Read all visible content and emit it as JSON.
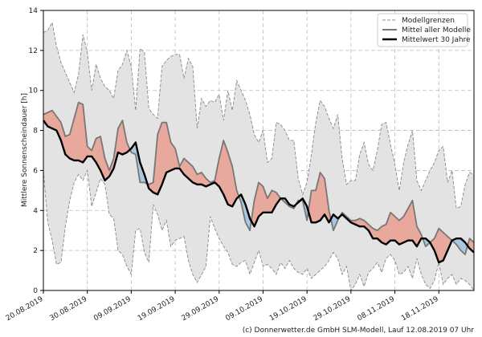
{
  "chart_data": {
    "type": "line",
    "ylabel": "Mittlere Sonnenscheindauer [h]",
    "ylim": [
      0,
      14
    ],
    "yticks": [
      "0",
      "2",
      "4",
      "6",
      "8",
      "10",
      "12",
      "14"
    ],
    "x_start": "2019-08-20",
    "x_end": "2019-11-26",
    "xticks": [
      "20.08.2019",
      "30.08.2019",
      "09.09.2019",
      "19.09.2019",
      "29.09.2019",
      "09.10.2019",
      "19.10.2019",
      "29.10.2019",
      "08.11.2019",
      "18.11.2019"
    ],
    "grid": true,
    "legend_position": "top-right",
    "legend": [
      "Modellgrenzen",
      "Mittel aller Modelle",
      "Mittelwert 30 Jahre"
    ],
    "fill_colors": {
      "above": "#e8a89c",
      "below": "#a9c8e0",
      "envelope": "#e3e3e3"
    },
    "x": [
      "2019-08-20",
      "2019-08-21",
      "2019-08-22",
      "2019-08-23",
      "2019-08-24",
      "2019-08-25",
      "2019-08-26",
      "2019-08-27",
      "2019-08-28",
      "2019-08-29",
      "2019-08-30",
      "2019-08-31",
      "2019-09-01",
      "2019-09-02",
      "2019-09-03",
      "2019-09-04",
      "2019-09-05",
      "2019-09-06",
      "2019-09-07",
      "2019-09-08",
      "2019-09-09",
      "2019-09-10",
      "2019-09-11",
      "2019-09-12",
      "2019-09-13",
      "2019-09-14",
      "2019-09-15",
      "2019-09-16",
      "2019-09-17",
      "2019-09-18",
      "2019-09-19",
      "2019-09-20",
      "2019-09-21",
      "2019-09-22",
      "2019-09-23",
      "2019-09-24",
      "2019-09-25",
      "2019-09-26",
      "2019-09-27",
      "2019-09-28",
      "2019-09-29",
      "2019-09-30",
      "2019-10-01",
      "2019-10-02",
      "2019-10-03",
      "2019-10-04",
      "2019-10-05",
      "2019-10-06",
      "2019-10-07",
      "2019-10-08",
      "2019-10-09",
      "2019-10-10",
      "2019-10-11",
      "2019-10-12",
      "2019-10-13",
      "2019-10-14",
      "2019-10-15",
      "2019-10-16",
      "2019-10-17",
      "2019-10-18",
      "2019-10-19",
      "2019-10-20",
      "2019-10-21",
      "2019-10-22",
      "2019-10-23",
      "2019-10-24",
      "2019-10-25",
      "2019-10-26",
      "2019-10-27",
      "2019-10-28",
      "2019-10-29",
      "2019-10-30",
      "2019-10-31",
      "2019-11-01",
      "2019-11-02",
      "2019-11-03",
      "2019-11-04",
      "2019-11-05",
      "2019-11-06",
      "2019-11-07",
      "2019-11-08",
      "2019-11-09",
      "2019-11-10",
      "2019-11-11",
      "2019-11-12",
      "2019-11-13",
      "2019-11-14",
      "2019-11-15",
      "2019-11-16",
      "2019-11-17",
      "2019-11-18",
      "2019-11-19",
      "2019-11-20",
      "2019-11-21",
      "2019-11-22",
      "2019-11-23",
      "2019-11-24",
      "2019-11-25",
      "2019-11-26"
    ],
    "series": [
      {
        "name": "Modellgrenzen",
        "upper": [
          12.9,
          13.0,
          13.4,
          12.2,
          11.4,
          10.9,
          10.4,
          9.9,
          10.8,
          12.8,
          11.9,
          10.0,
          11.3,
          10.6,
          10.2,
          10.0,
          9.6,
          11.0,
          11.3,
          12.0,
          11.2,
          9.0,
          12.1,
          11.9,
          9.1,
          8.8,
          8.6,
          11.2,
          11.5,
          11.7,
          11.8,
          11.8,
          10.6,
          11.6,
          11.2,
          8.1,
          9.6,
          9.2,
          9.5,
          9.4,
          9.8,
          8.5,
          10.0,
          9.0,
          10.5,
          10.0,
          9.5,
          8.8,
          7.8,
          7.4,
          8.0,
          6.4,
          6.6,
          8.4,
          8.3,
          8.0,
          7.5,
          7.5,
          5.6,
          4.8,
          5.4,
          6.8,
          8.4,
          9.5,
          9.2,
          8.6,
          8.1,
          8.8,
          6.6,
          5.3,
          5.5,
          5.5,
          6.8,
          7.4,
          6.3,
          6.0,
          7.0,
          8.3,
          8.4,
          7.3,
          6.3,
          5.0,
          6.4,
          7.3,
          8.0,
          5.5,
          5.0,
          5.5,
          6.0,
          6.4,
          7.0,
          7.2,
          5.4,
          6.0,
          4.1,
          4.2,
          5.3,
          5.9,
          5.8
        ],
        "lower": [
          6.0,
          3.4,
          2.5,
          1.3,
          1.4,
          3.2,
          4.5,
          5.4,
          5.8,
          5.5,
          6.0,
          4.2,
          4.9,
          5.6,
          5.3,
          3.8,
          3.6,
          2.0,
          1.8,
          1.2,
          0.8,
          3.0,
          3.1,
          1.9,
          1.4,
          4.3,
          3.8,
          3.0,
          3.5,
          2.2,
          2.5,
          2.6,
          2.7,
          1.5,
          0.8,
          0.4,
          0.8,
          1.2,
          3.7,
          3.1,
          2.6,
          2.2,
          1.9,
          1.3,
          1.2,
          1.4,
          1.5,
          0.8,
          1.4,
          2.0,
          1.2,
          1.3,
          1.1,
          0.8,
          1.4,
          1.1,
          1.5,
          1.1,
          0.9,
          0.8,
          1.1,
          0.6,
          0.8,
          1.0,
          1.2,
          1.5,
          1.9,
          1.6,
          0.8,
          1.2,
          0.0,
          0.3,
          0.8,
          0.2,
          0.9,
          1.1,
          1.4,
          0.9,
          1.6,
          1.8,
          1.5,
          0.8,
          0.9,
          1.2,
          0.6,
          1.6,
          0.8,
          0.3,
          0.1,
          0.5,
          1.4,
          0.3,
          0.6,
          0.8,
          0.3,
          0.6,
          0.5,
          0.3,
          0.0
        ]
      },
      {
        "name": "Mittel aller Modelle",
        "values": [
          8.8,
          8.9,
          9.0,
          8.7,
          8.4,
          7.7,
          7.8,
          8.6,
          9.4,
          9.3,
          7.2,
          7.0,
          7.6,
          7.7,
          6.6,
          6.0,
          6.6,
          8.1,
          8.5,
          7.4,
          6.9,
          6.8,
          5.4,
          5.4,
          5.3,
          5.4,
          7.8,
          8.4,
          8.4,
          7.4,
          7.1,
          6.2,
          6.6,
          6.4,
          6.2,
          5.8,
          5.9,
          5.6,
          5.4,
          5.5,
          6.6,
          7.5,
          6.9,
          6.2,
          5.0,
          4.4,
          3.4,
          3.0,
          4.5,
          5.4,
          5.2,
          4.6,
          5.0,
          4.9,
          4.6,
          4.4,
          4.2,
          4.1,
          4.5,
          4.5,
          3.5,
          5.0,
          5.0,
          5.9,
          5.6,
          4.0,
          3.0,
          3.5,
          3.9,
          3.7,
          3.5,
          3.5,
          3.6,
          3.5,
          3.3,
          3.1,
          3.0,
          3.2,
          3.3,
          3.9,
          3.7,
          3.5,
          3.7,
          4.1,
          4.5,
          3.2,
          2.8,
          2.2,
          2.4,
          2.6,
          3.1,
          2.9,
          2.7,
          2.5,
          2.3,
          2.0,
          1.8,
          2.6,
          2.4
        ]
      },
      {
        "name": "Mittelwert 30 Jahre",
        "values": [
          8.5,
          8.2,
          8.1,
          8.0,
          7.5,
          6.8,
          6.6,
          6.5,
          6.5,
          6.4,
          6.7,
          6.7,
          6.4,
          6.0,
          5.5,
          5.7,
          6.1,
          6.9,
          6.8,
          6.9,
          7.1,
          7.4,
          6.4,
          5.8,
          5.1,
          4.9,
          4.8,
          5.3,
          5.9,
          6.0,
          6.1,
          6.1,
          5.8,
          5.6,
          5.4,
          5.3,
          5.3,
          5.2,
          5.3,
          5.4,
          5.2,
          4.8,
          4.3,
          4.2,
          4.6,
          4.8,
          4.3,
          3.6,
          3.2,
          3.7,
          3.9,
          3.9,
          3.9,
          4.3,
          4.6,
          4.6,
          4.3,
          4.2,
          4.4,
          4.6,
          4.2,
          3.4,
          3.4,
          3.5,
          3.8,
          3.4,
          3.8,
          3.6,
          3.8,
          3.6,
          3.4,
          3.3,
          3.2,
          3.2,
          3.0,
          2.6,
          2.6,
          2.4,
          2.3,
          2.5,
          2.5,
          2.3,
          2.4,
          2.5,
          2.5,
          2.2,
          2.6,
          2.6,
          2.4,
          2.0,
          1.4,
          1.5,
          2.0,
          2.5,
          2.6,
          2.6,
          2.4,
          2.1,
          1.9
        ]
      }
    ]
  },
  "credit": "(c) Donnerwetter.de GmbH SLM-Modell, Lauf 12.08.2019 07 Uhr"
}
